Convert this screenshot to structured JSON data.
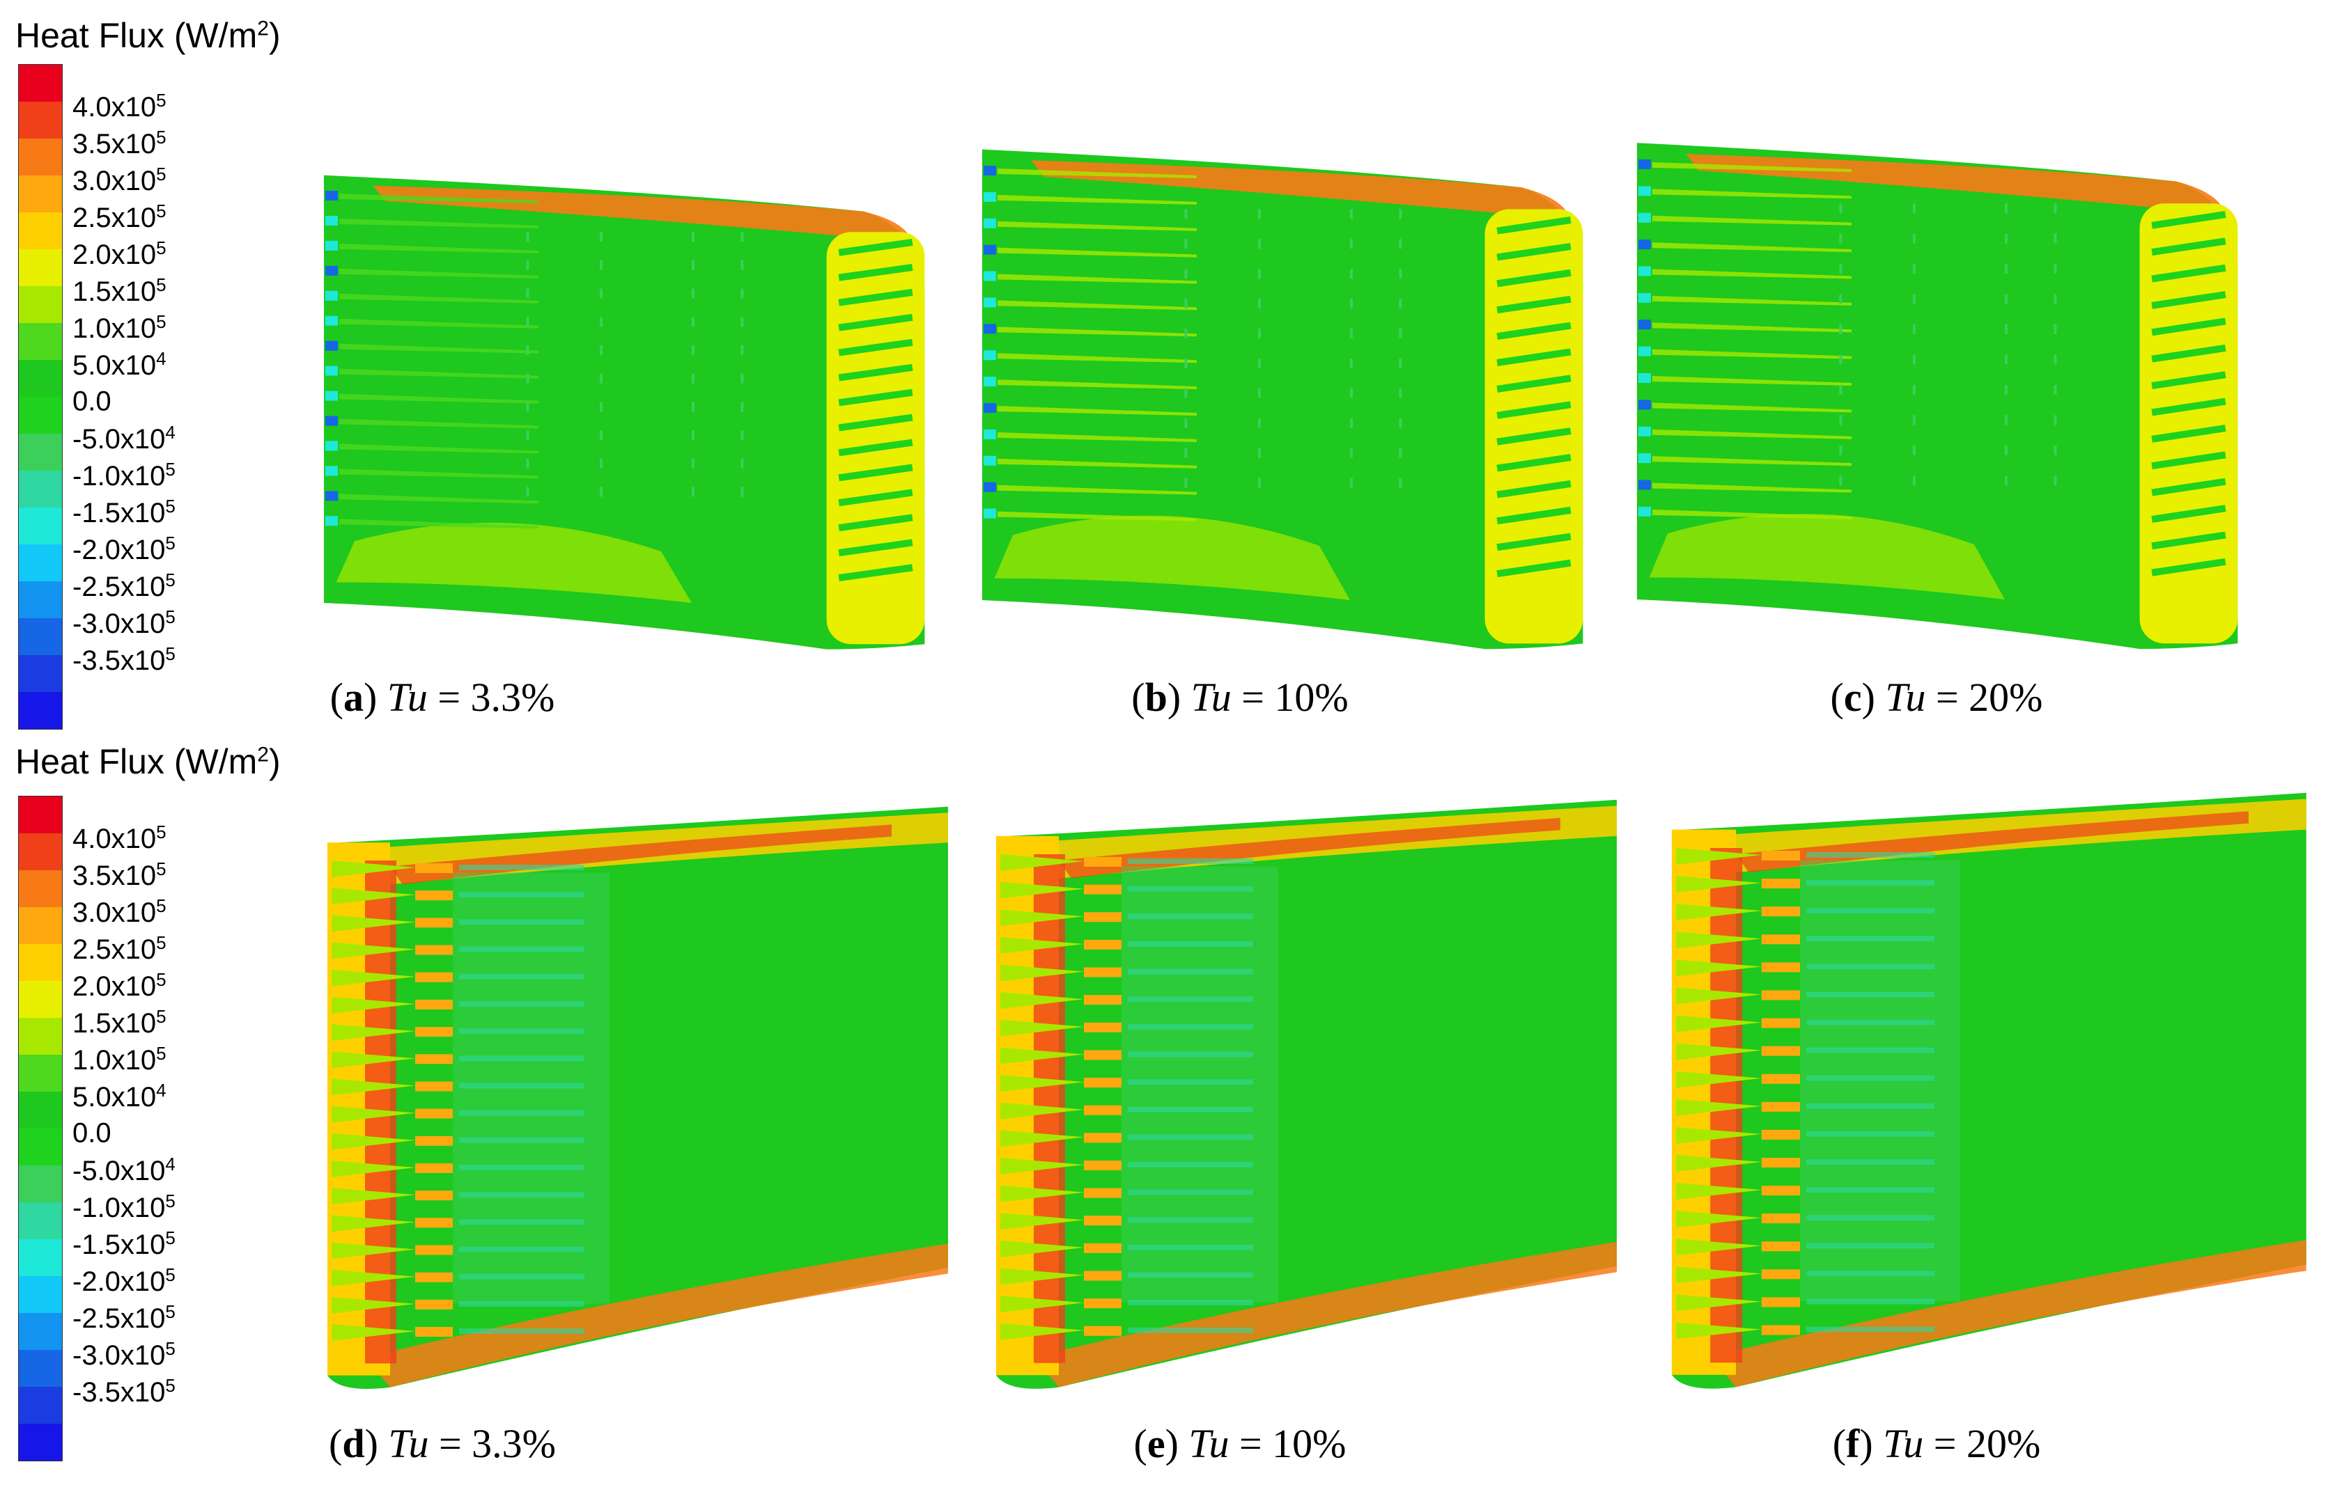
{
  "legend": {
    "title": "Heat Flux (W/m",
    "title_sup": "2",
    "title_close": ")",
    "colors": [
      "#e8001c",
      "#f0401a",
      "#f87a16",
      "#ffa810",
      "#ffd000",
      "#e8f000",
      "#a8e800",
      "#4ed81e",
      "#1ec81e",
      "#1ed21e",
      "#3ccf5a",
      "#2ed8a0",
      "#1ee8d8",
      "#12c8f8",
      "#1294f0",
      "#1666e6",
      "#1a3ce0",
      "#1616e8"
    ],
    "ticks": [
      {
        "m": "4.0x10",
        "e": "5"
      },
      {
        "m": "3.5x10",
        "e": "5"
      },
      {
        "m": "3.0x10",
        "e": "5"
      },
      {
        "m": "2.5x10",
        "e": "5"
      },
      {
        "m": "2.0x10",
        "e": "5"
      },
      {
        "m": "1.5x10",
        "e": "5"
      },
      {
        "m": "1.0x10",
        "e": "5"
      },
      {
        "m": "5.0x10",
        "e": "4"
      },
      {
        "m": "0.0",
        "e": ""
      },
      {
        "m": "-5.0x10",
        "e": "4"
      },
      {
        "m": "-1.0x10",
        "e": "5"
      },
      {
        "m": "-1.5x10",
        "e": "5"
      },
      {
        "m": "-2.0x10",
        "e": "5"
      },
      {
        "m": "-2.5x10",
        "e": "5"
      },
      {
        "m": "-3.0x10",
        "e": "5"
      },
      {
        "m": "-3.5x10",
        "e": "5"
      }
    ]
  },
  "captions": [
    {
      "letter": "a",
      "var": "Tu",
      "value": " = 3.3%"
    },
    {
      "letter": "b",
      "var": "Tu",
      "value": " = 10%"
    },
    {
      "letter": "c",
      "var": "Tu",
      "value": " = 20%"
    },
    {
      "letter": "d",
      "var": "Tu",
      "value": " = 3.3%"
    },
    {
      "letter": "e",
      "var": "Tu",
      "value": " = 10%"
    },
    {
      "letter": "f",
      "var": "Tu",
      "value": " = 20%"
    }
  ]
}
